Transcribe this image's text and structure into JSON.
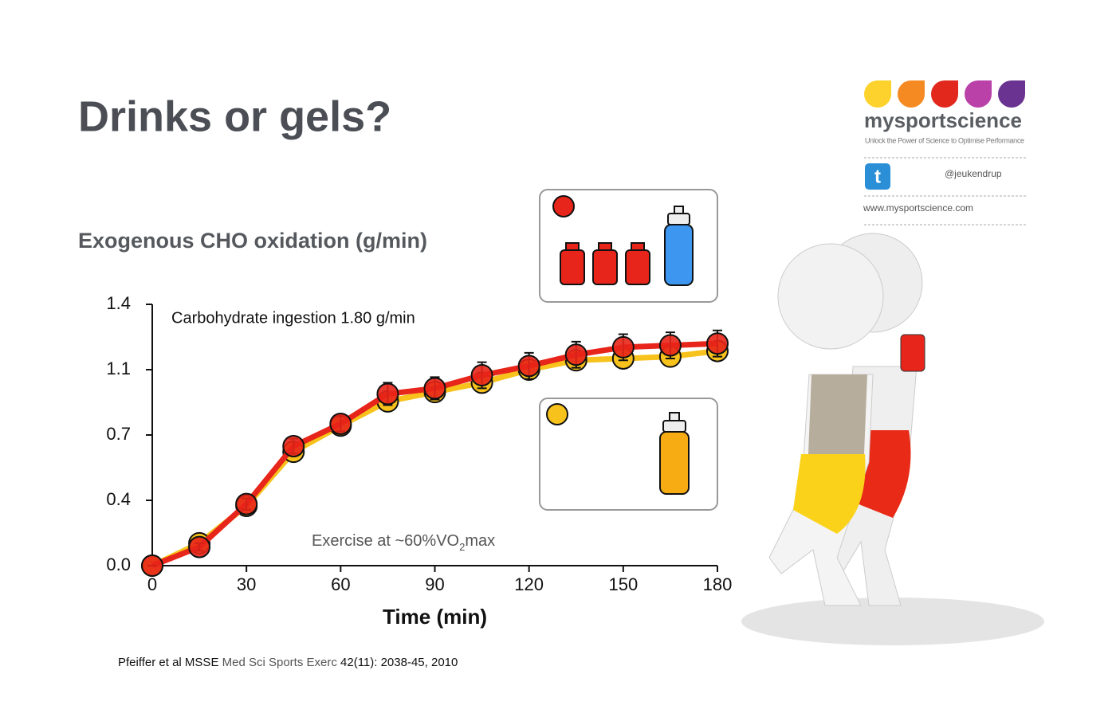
{
  "slide": {
    "title": "Drinks or gels?",
    "citation": [
      "Pfeiffer et al MSSE ",
      "Med Sci Sports Exerc",
      " 42(11): 2038-45, 2010"
    ],
    "brand": {
      "name": "mysportscience",
      "tagline": "Unlock the Power of Science to Optimise Performance",
      "twitter": "@jeukendrup",
      "website": "www.mysportscience.com"
    }
  },
  "chart_data": {
    "type": "line",
    "title": "Exogenous CHO oxidation (g/min)",
    "xlabel": "Time (min)",
    "annotation": "Carbohydrate ingestion 1.80 g/min",
    "exercise_note": [
      "Exercise at ~60%VO",
      "2",
      "max"
    ],
    "x": [
      0,
      15,
      30,
      45,
      60,
      75,
      90,
      105,
      120,
      135,
      150,
      165,
      180
    ],
    "xlim": [
      0,
      180
    ],
    "xticks": [
      0,
      30,
      60,
      90,
      120,
      150,
      180
    ],
    "ylim": [
      0,
      1.4
    ],
    "yticks": [
      {
        "value": 0,
        "label": "0.0"
      },
      {
        "value": 0.35,
        "label": "0.4"
      },
      0.7,
      {
        "value": 1.05,
        "label": "1.1"
      },
      1.4
    ],
    "series": [
      {
        "color": "#f7c21b",
        "values": [
          0,
          0.12,
          0.32,
          0.61,
          0.75,
          0.88,
          0.93,
          0.98,
          1.05,
          1.1,
          1.11,
          1.12,
          1.15
        ]
      },
      {
        "color": "#e8251a",
        "values": [
          0,
          0.1,
          0.33,
          0.64,
          0.76,
          0.92,
          0.95,
          1.02,
          1.07,
          1.13,
          1.17,
          1.18,
          1.19
        ],
        "errors": [
          0,
          0.02,
          0.03,
          0.04,
          0.04,
          0.06,
          0.06,
          0.07,
          0.07,
          0.07,
          0.07,
          0.07,
          0.07
        ]
      }
    ]
  }
}
